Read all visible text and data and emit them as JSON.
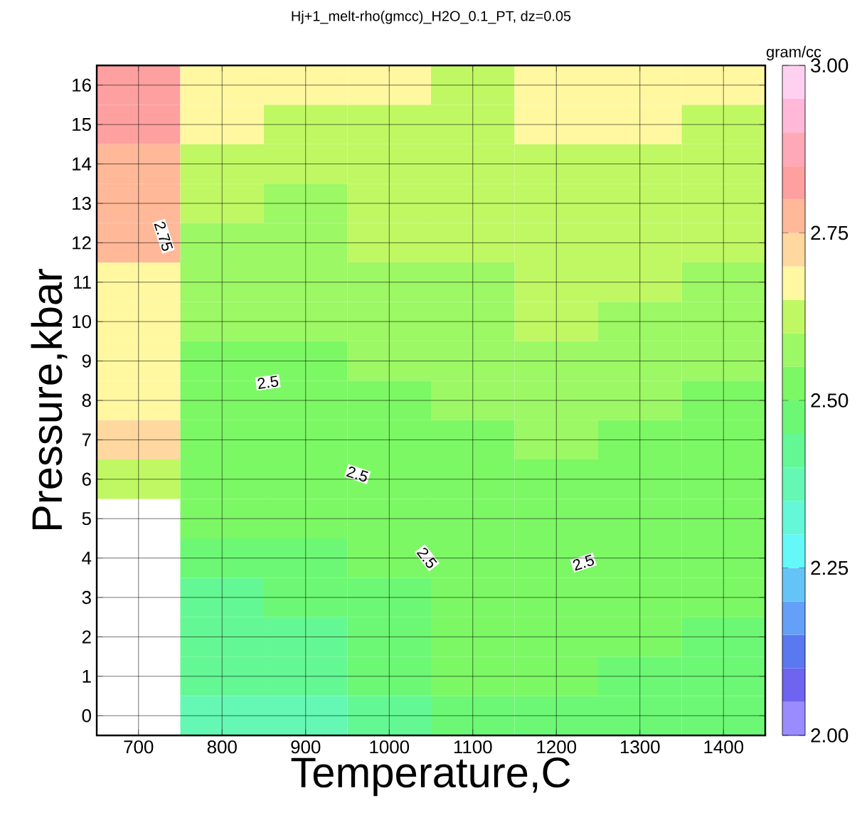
{
  "chart_data": {
    "type": "heatmap",
    "title": "Hj+1_melt-rho(gmcc)_H2O_0.1_PT, dz=0.05",
    "xlabel": "Temperature,C",
    "ylabel": "Pressure,kbar",
    "clabel": "gram/cc",
    "categories": [
      "700",
      "800",
      "900",
      "1000",
      "1100",
      "1200",
      "1300",
      "1400"
    ],
    "y_categories": [
      "16",
      "15",
      "14",
      "13",
      "12",
      "11",
      "10",
      "9",
      "8",
      "7",
      "6",
      "5",
      "4",
      "3",
      "2",
      "1",
      "0"
    ],
    "grid": true,
    "clim": [
      2.0,
      3.0
    ],
    "cticks": [
      {
        "value": 2.0,
        "label": "2.00"
      },
      {
        "value": 2.25,
        "label": "2.25"
      },
      {
        "value": 2.5,
        "label": "2.50"
      },
      {
        "value": 2.75,
        "label": "2.75"
      },
      {
        "value": 3.0,
        "label": "3.00"
      }
    ],
    "cells": [
      [
        2.83,
        2.68,
        2.68,
        2.68,
        2.63,
        2.68,
        2.68,
        2.68
      ],
      [
        2.83,
        2.68,
        2.63,
        2.63,
        2.63,
        2.68,
        2.68,
        2.63
      ],
      [
        2.78,
        2.63,
        2.63,
        2.63,
        2.63,
        2.63,
        2.63,
        2.63
      ],
      [
        2.78,
        2.63,
        2.58,
        2.63,
        2.63,
        2.63,
        2.63,
        2.63
      ],
      [
        2.78,
        2.58,
        2.58,
        2.63,
        2.63,
        2.63,
        2.63,
        2.63
      ],
      [
        2.68,
        2.58,
        2.58,
        2.58,
        2.58,
        2.63,
        2.63,
        2.58
      ],
      [
        2.68,
        2.58,
        2.58,
        2.58,
        2.58,
        2.63,
        2.58,
        2.58
      ],
      [
        2.68,
        2.53,
        2.53,
        2.58,
        2.58,
        2.58,
        2.58,
        2.58
      ],
      [
        2.68,
        2.53,
        2.53,
        2.53,
        2.58,
        2.58,
        2.58,
        2.53
      ],
      [
        2.73,
        2.53,
        2.53,
        2.53,
        2.53,
        2.58,
        2.53,
        2.53
      ],
      [
        2.63,
        2.53,
        2.53,
        2.53,
        2.53,
        2.53,
        2.53,
        2.53
      ],
      [
        null,
        2.53,
        2.53,
        2.53,
        2.53,
        2.53,
        2.53,
        2.53
      ],
      [
        null,
        2.48,
        2.48,
        2.53,
        2.53,
        2.53,
        2.53,
        2.53
      ],
      [
        null,
        2.43,
        2.48,
        2.48,
        2.53,
        2.53,
        2.53,
        2.53
      ],
      [
        null,
        2.43,
        2.43,
        2.48,
        2.53,
        2.53,
        2.53,
        2.48
      ],
      [
        null,
        2.43,
        2.43,
        2.48,
        2.53,
        2.53,
        2.48,
        2.48
      ],
      [
        null,
        2.38,
        2.38,
        2.43,
        2.48,
        2.48,
        2.48,
        2.48
      ]
    ],
    "annotations": [
      "2.75",
      "2.5",
      "2.5",
      "2.5",
      "2.5"
    ]
  }
}
